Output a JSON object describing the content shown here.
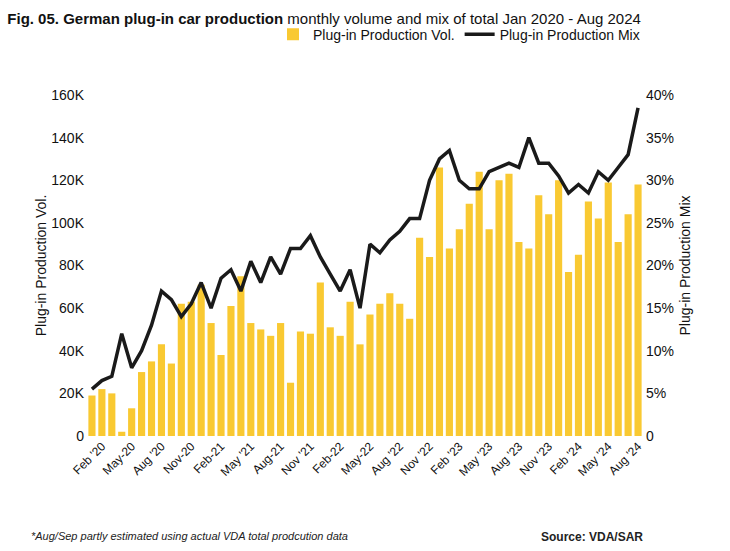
{
  "chart_data": {
    "type": "bar",
    "title": "Fig. 05. German plug-in car production",
    "subtitle": "monthly volume and mix of total Jan 2020 - Aug 2024",
    "annotations": [
      "*Aug/Sep partly estimated using actual VDA total prodcution data",
      "Source: VDA/SAR"
    ],
    "y_label": "Plug-in Production Vol.",
    "y2_label": "Plug-in Production Mix",
    "categories": [
      null,
      "Feb '20",
      null,
      null,
      "May-20",
      null,
      null,
      "Aug '20",
      null,
      null,
      "Nov-20",
      null,
      null,
      "Feb-21",
      null,
      null,
      "May '21",
      null,
      null,
      "Aug-21",
      null,
      null,
      "Nov '21",
      null,
      null,
      "Feb-22",
      null,
      null,
      "May-22",
      null,
      null,
      "Aug '22",
      null,
      null,
      "Nov '22",
      null,
      null,
      "Feb '23",
      null,
      null,
      "May '23",
      null,
      null,
      "Aug '23",
      null,
      null,
      "Nov '23",
      null,
      null,
      "Feb '24",
      null,
      null,
      "May '24",
      null,
      null,
      "Aug '24"
    ],
    "series": [
      {
        "name": "Plug-in Production Vol.",
        "type": "bar",
        "color": "#F9C932",
        "values": [
          19000,
          22000,
          20000,
          2000,
          13000,
          30000,
          35000,
          43000,
          34000,
          62000,
          63000,
          71000,
          53000,
          38000,
          61000,
          75000,
          53000,
          50000,
          47000,
          53000,
          25000,
          49000,
          48000,
          72000,
          51000,
          47000,
          63000,
          43000,
          57000,
          62000,
          67000,
          62000,
          55000,
          93000,
          84000,
          126000,
          88000,
          97000,
          109000,
          124000,
          97000,
          120000,
          123000,
          91000,
          88000,
          113000,
          104000,
          120000,
          77000,
          85000,
          110000,
          102000,
          119000,
          91000,
          104000,
          118000
        ]
      },
      {
        "name": "Plug-in Production Mix",
        "type": "line",
        "axis": "y2",
        "color": "#1A1A1A",
        "values": [
          5.5,
          6.5,
          7,
          12,
          8,
          10,
          13,
          17,
          16,
          14,
          15.5,
          18,
          15,
          18.5,
          19.5,
          17,
          20.5,
          18,
          21,
          19,
          22,
          22,
          23.5,
          21,
          19,
          17,
          19.5,
          15,
          22.5,
          21.5,
          23,
          24,
          25.5,
          25.5,
          30,
          32.5,
          33.5,
          30,
          29,
          29,
          31,
          31.5,
          32,
          31.5,
          35,
          32,
          32,
          30.5,
          28.5,
          29.5,
          28.5,
          31,
          30,
          31.5,
          33,
          38.5
        ]
      }
    ],
    "ylim": [
      0,
      160000
    ],
    "yticks": [
      0,
      {
        "value": 20000,
        "label": "20K"
      },
      {
        "value": 40000,
        "label": "40K"
      },
      {
        "value": 60000,
        "label": "60K"
      },
      {
        "value": 80000,
        "label": "80K"
      },
      {
        "value": 100000,
        "label": "100K"
      },
      {
        "value": 120000,
        "label": "120K"
      },
      {
        "value": 140000,
        "label": "140K"
      },
      {
        "value": 160000,
        "label": "160K"
      }
    ],
    "y2lim": [
      0,
      40
    ],
    "y2ticks": [
      0,
      {
        "value": 5,
        "label": "5%"
      },
      {
        "value": 10,
        "label": "10%"
      },
      {
        "value": 15,
        "label": "15%"
      },
      {
        "value": 20,
        "label": "20%"
      },
      {
        "value": 25,
        "label": "25%"
      },
      {
        "value": 30,
        "label": "30%"
      },
      {
        "value": 35,
        "label": "35%"
      },
      {
        "value": 40,
        "label": "40%"
      }
    ],
    "grid": false,
    "legend": "top right"
  }
}
